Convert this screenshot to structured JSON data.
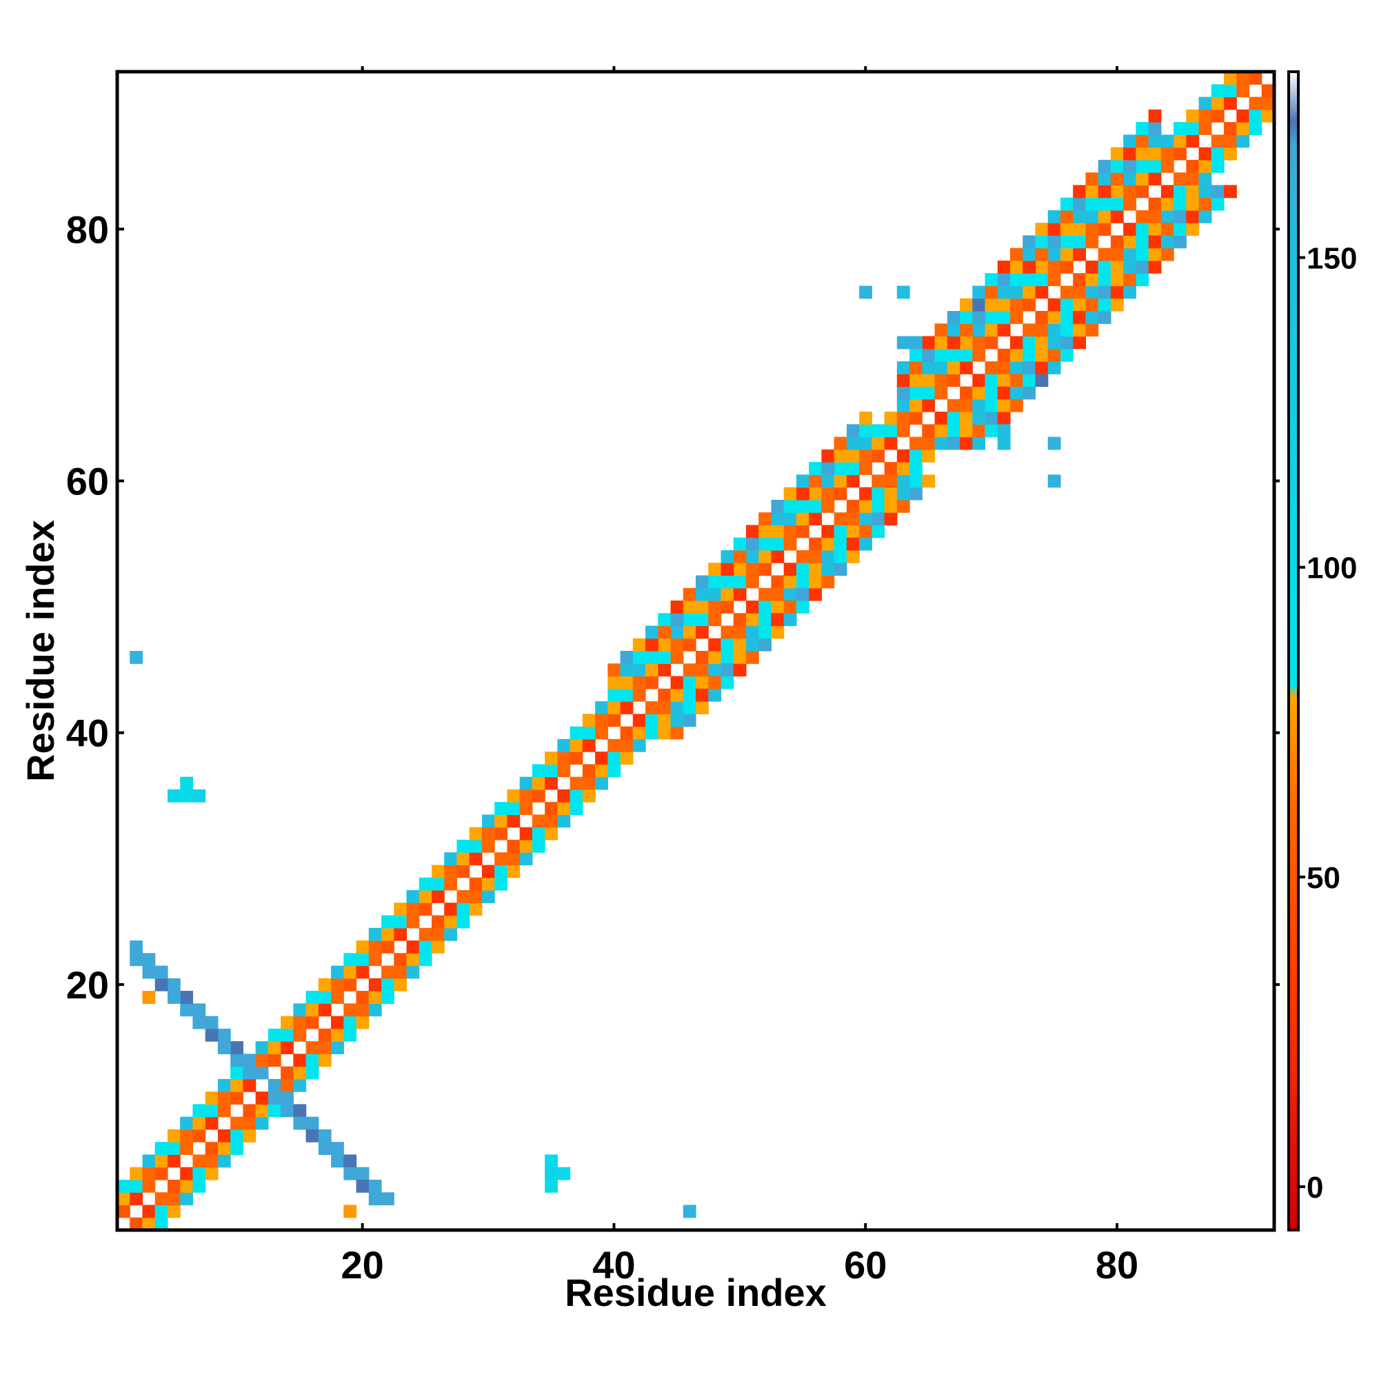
{
  "chart_data": {
    "type": "heatmap",
    "title": "",
    "xlabel": "Residue index",
    "ylabel": "Residue index",
    "xlim": [
      0.5,
      92.5
    ],
    "ylim": [
      0.5,
      92.5
    ],
    "x_ticks": [
      20,
      40,
      60,
      80
    ],
    "y_ticks": [
      20,
      40,
      60,
      80
    ],
    "grid": false,
    "colorbar": {
      "range": [
        -7,
        180
      ],
      "ticks": [
        0,
        50,
        100,
        150
      ],
      "stops": [
        {
          "value": -7,
          "color": "#d40000"
        },
        {
          "value": 28,
          "color": "#ff3300"
        },
        {
          "value": 60,
          "color": "#ff6600"
        },
        {
          "value": 79,
          "color": "#ffa500"
        },
        {
          "value": 81,
          "color": "#00e5ee"
        },
        {
          "value": 150,
          "color": "#20bfe0"
        },
        {
          "value": 168,
          "color": "#3fa8d8"
        },
        {
          "value": 172,
          "color": "#4a74b4"
        },
        {
          "value": 180,
          "color": "#ffffff"
        }
      ]
    },
    "diagonal_band": {
      "description_free": true,
      "start": 1,
      "end": 92,
      "offsets": [
        1,
        2,
        3
      ],
      "palette_by_offset": {
        "1": [
          "#ff6600",
          "#ff5500",
          "#ff3300"
        ],
        "2": [
          "#ff6600",
          "#ffa500",
          "#00e5ee"
        ],
        "3": [
          "#20bfe0",
          "#00e5ee",
          "#ffa500"
        ]
      }
    },
    "wide_segments": [
      {
        "from": 40,
        "to": 60,
        "extra_offsets": [
          4,
          5
        ]
      },
      {
        "from": 63,
        "to": 83,
        "extra_offsets": [
          4,
          5,
          6
        ]
      }
    ],
    "cross_arms": [
      {
        "x_from": 12,
        "x_to": 2,
        "y_from": 12,
        "y_to": 21,
        "width": 2,
        "color": "#3fa8d8"
      },
      {
        "x_from": 12,
        "x_to": 21,
        "y_from": 12,
        "y_to": 2,
        "width": 2,
        "color": "#3fa8d8"
      }
    ],
    "points": [
      {
        "x": 2,
        "y": 46,
        "value": 160
      },
      {
        "x": 5,
        "y": 35,
        "value": 110
      },
      {
        "x": 6,
        "y": 35,
        "value": 100
      },
      {
        "x": 6,
        "y": 36,
        "value": 100
      },
      {
        "x": 7,
        "y": 35,
        "value": 120
      },
      {
        "x": 35,
        "y": 5,
        "value": 110
      },
      {
        "x": 35,
        "y": 6,
        "value": 100
      },
      {
        "x": 35,
        "y": 4,
        "value": 100
      },
      {
        "x": 36,
        "y": 5,
        "value": 100
      },
      {
        "x": 46,
        "y": 2,
        "value": 160
      },
      {
        "x": 19,
        "y": 2,
        "value": 75
      },
      {
        "x": 3,
        "y": 19,
        "value": 75
      },
      {
        "x": 60,
        "y": 75,
        "value": 160
      },
      {
        "x": 63,
        "y": 75,
        "value": 150
      },
      {
        "x": 63,
        "y": 71,
        "value": 160
      },
      {
        "x": 64,
        "y": 71,
        "value": 160
      },
      {
        "x": 71,
        "y": 64,
        "value": 150
      },
      {
        "x": 71,
        "y": 63,
        "value": 150
      },
      {
        "x": 75,
        "y": 63,
        "value": 160
      },
      {
        "x": 75,
        "y": 60,
        "value": 160
      },
      {
        "x": 74,
        "y": 68,
        "value": 172
      },
      {
        "x": 69,
        "y": 74,
        "value": 172
      }
    ]
  }
}
